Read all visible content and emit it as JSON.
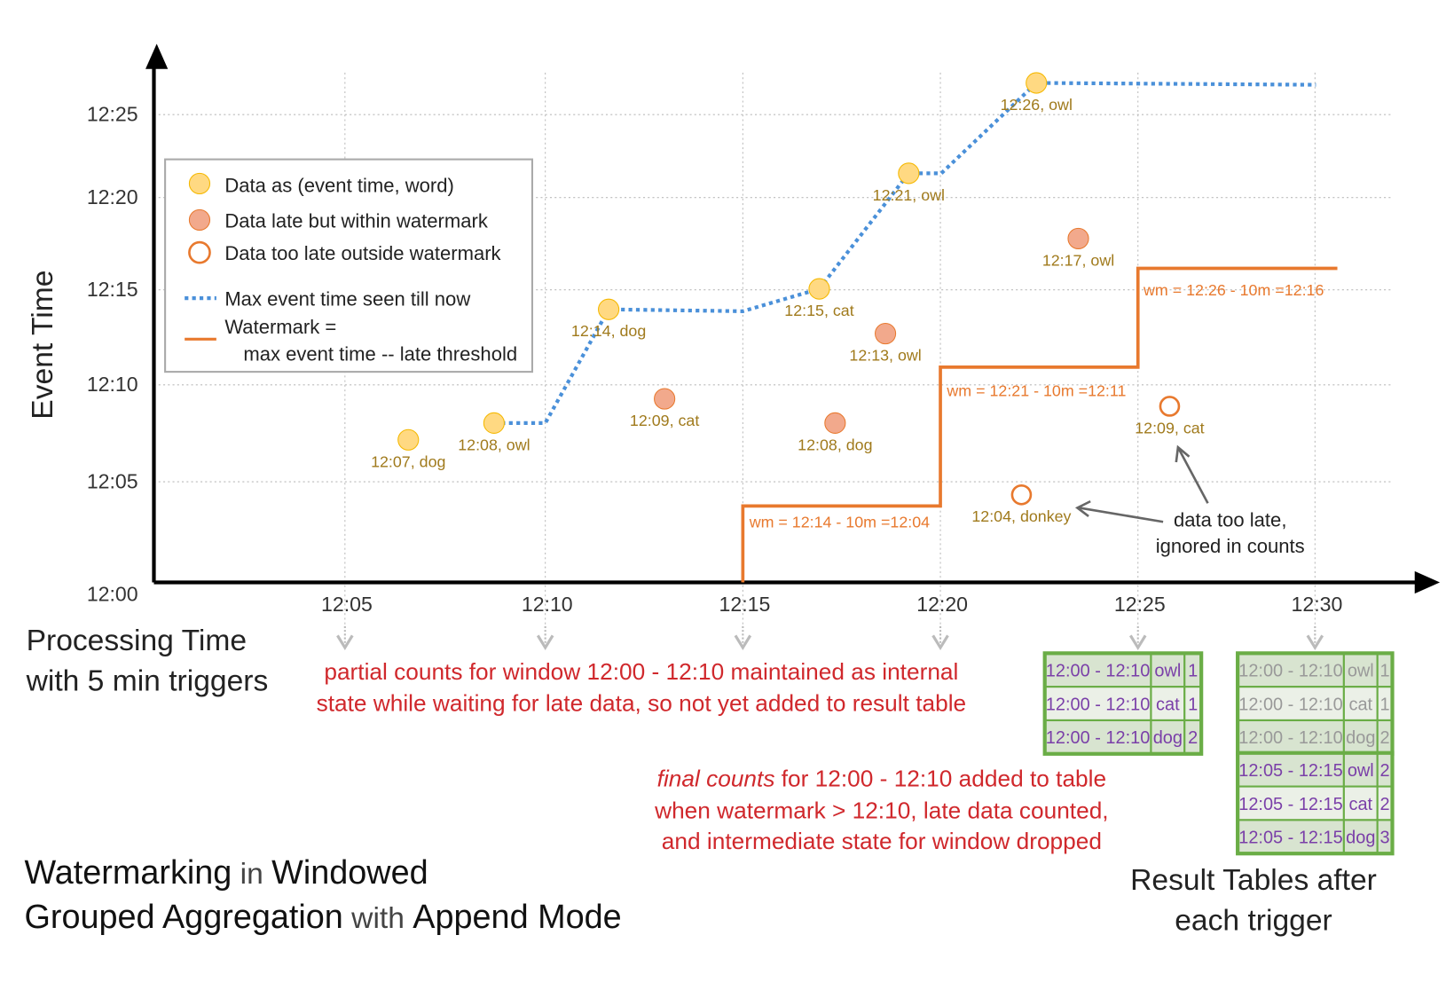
{
  "axes": {
    "y_label": "Event Time",
    "x_label_line1": "Processing Time",
    "x_label_line2": "with 5 min triggers",
    "y_ticks": [
      "12:00",
      "12:05",
      "12:10",
      "12:15",
      "12:20",
      "12:25"
    ],
    "x_ticks": [
      "12:05",
      "12:10",
      "12:15",
      "12:20",
      "12:25",
      "12:30"
    ]
  },
  "legend": {
    "on_time": "Data as (event time, word)",
    "late": "Data late but within watermark",
    "too_late": "Data too late outside watermark",
    "max_event": "Max event time seen till now",
    "watermark_1": "Watermark =",
    "watermark_2": "max event time -- late threshold"
  },
  "points": [
    {
      "label": "12:07, dog",
      "kind": "on_time"
    },
    {
      "label": "12:08, owl",
      "kind": "on_time"
    },
    {
      "label": "12:14, dog",
      "kind": "on_time"
    },
    {
      "label": "12:15, cat",
      "kind": "on_time"
    },
    {
      "label": "12:21, owl",
      "kind": "on_time"
    },
    {
      "label": "12:26, owl",
      "kind": "on_time"
    },
    {
      "label": "12:09, cat",
      "kind": "late"
    },
    {
      "label": "12:13, owl",
      "kind": "late"
    },
    {
      "label": "12:08, dog",
      "kind": "late"
    },
    {
      "label": "12:17, owl",
      "kind": "late"
    },
    {
      "label": "12:04, donkey",
      "kind": "too_late"
    },
    {
      "label": "12:09, cat",
      "kind": "too_late"
    }
  ],
  "watermark_labels": [
    "wm = 12:14 - 10m =12:04",
    "wm = 12:21 - 10m =12:11",
    "wm = 12:26 - 10m =12:16"
  ],
  "annotations": {
    "too_late_1": "data too late,",
    "too_late_2": "ignored in counts",
    "partial_1": "partial counts for window 12:00 - 12:10 maintained as internal",
    "partial_2": "state while waiting for late data, so not yet added  to result table",
    "final_em": "final counts",
    "final_1": " for 12:00 - 12:10 added to table",
    "final_2": "when watermark > 12:10, late data counted,",
    "final_3": "and intermediate state for window dropped"
  },
  "title": {
    "l1a": "Watermarking",
    "l1b": " in ",
    "l1c": "Windowed",
    "l2a": "Grouped Aggregation",
    "l2b": " with ",
    "l2c": "Append Mode"
  },
  "result_caption_1": "Result Tables after",
  "result_caption_2": "each trigger",
  "table_1225": [
    [
      "12:00 - 12:10",
      "owl",
      "1"
    ],
    [
      "12:00 - 12:10",
      "cat",
      "1"
    ],
    [
      "12:00 - 12:10",
      "dog",
      "2"
    ]
  ],
  "table_1230_old": [
    [
      "12:00 - 12:10",
      "owl",
      "1"
    ],
    [
      "12:00 - 12:10",
      "cat",
      "1"
    ],
    [
      "12:00 - 12:10",
      "dog",
      "2"
    ]
  ],
  "table_1230_new": [
    [
      "12:05 - 12:15",
      "owl",
      "2"
    ],
    [
      "12:05 - 12:15",
      "cat",
      "2"
    ],
    [
      "12:05 - 12:15",
      "dog",
      "3"
    ]
  ],
  "colors": {
    "on_time": "#ffd982",
    "on_time_stroke": "#f5b800",
    "late": "#f2a98c",
    "late_stroke": "#e8792e",
    "watermark": "#e8792e",
    "max_event": "#4a90d9",
    "table_border": "#6aad46",
    "table_fill": "#d8e4d0",
    "annot": "#d0282c"
  }
}
